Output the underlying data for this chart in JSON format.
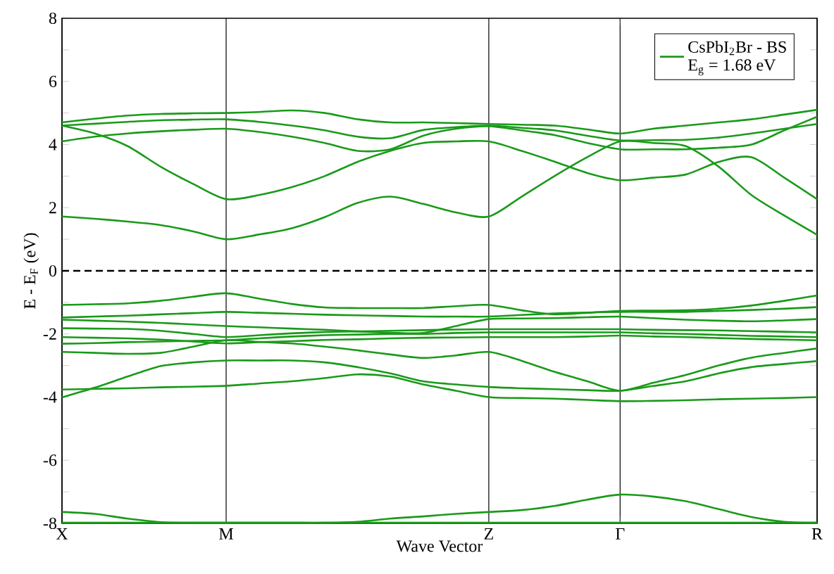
{
  "chart_data": {
    "type": "line",
    "xlabel": "Wave Vector",
    "ylabel": "E - E$_{F}$ (eV)",
    "annotations": [
      "E$_{g}$ = 1.68 eV"
    ],
    "ylim": [
      -8,
      8
    ],
    "yticks": [
      -8,
      {
        "value": -7,
        "label": null
      },
      -6,
      {
        "value": -5,
        "label": null
      },
      -4,
      {
        "value": -3,
        "label": null
      },
      -2,
      {
        "value": -1,
        "label": null
      },
      0,
      {
        "value": 1,
        "label": null
      },
      2,
      {
        "value": 3,
        "label": null
      },
      4,
      {
        "value": 5,
        "label": null
      },
      6,
      {
        "value": 7,
        "label": null
      },
      8
    ],
    "categories": [
      "X",
      null,
      null,
      null,
      null,
      "M",
      null,
      null,
      null,
      null,
      null,
      null,
      null,
      "Z",
      null,
      null,
      null,
      "Γ",
      null,
      null,
      null,
      null,
      null,
      "R"
    ],
    "legend": "top right",
    "marker": "none",
    "grid": "x",
    "ref_lines": [
      {
        "axis": "y",
        "value": 0,
        "color": "#000000",
        "line_style": "dashed"
      }
    ],
    "series": [
      {
        "name": "CsPbI$_{2}$Br  - BS",
        "color": "#1a9a1a",
        "values": [
          1.72,
          1.65,
          1.56,
          1.45,
          1.25,
          1.0,
          1.15,
          1.35,
          1.7,
          2.15,
          2.35,
          2.12,
          1.85,
          1.72,
          2.35,
          3.0,
          3.6,
          4.1,
          4.05,
          3.95,
          3.3,
          2.4,
          1.75,
          1.14
        ]
      },
      {
        "color": "#1a9a1a",
        "values": [
          4.6,
          4.35,
          3.95,
          3.3,
          2.75,
          2.27,
          2.4,
          2.65,
          3.0,
          3.45,
          3.8,
          4.05,
          4.1,
          4.1,
          3.8,
          3.46,
          3.1,
          2.87,
          2.95,
          3.05,
          3.45,
          3.6,
          2.95,
          2.27
        ]
      },
      {
        "color": "#1a9a1a",
        "values": [
          4.1,
          4.25,
          4.35,
          4.42,
          4.47,
          4.5,
          4.4,
          4.25,
          4.05,
          3.8,
          3.85,
          4.28,
          4.5,
          4.58,
          4.45,
          4.3,
          4.05,
          3.85,
          3.85,
          3.85,
          3.9,
          4.0,
          4.45,
          4.88
        ]
      },
      {
        "color": "#1a9a1a",
        "values": [
          4.6,
          4.66,
          4.72,
          4.77,
          4.79,
          4.8,
          4.72,
          4.6,
          4.45,
          4.25,
          4.2,
          4.46,
          4.55,
          4.6,
          4.53,
          4.45,
          4.28,
          4.13,
          4.14,
          4.15,
          4.22,
          4.35,
          4.5,
          4.65
        ]
      },
      {
        "color": "#1a9a1a",
        "values": [
          4.7,
          4.82,
          4.92,
          4.97,
          4.99,
          5.0,
          5.03,
          5.08,
          5.0,
          4.8,
          4.7,
          4.7,
          4.68,
          4.65,
          4.63,
          4.6,
          4.48,
          4.35,
          4.5,
          4.6,
          4.7,
          4.8,
          4.95,
          5.1
        ]
      },
      {
        "color": "#1a9a1a",
        "values": [
          -1.08,
          -1.06,
          -1.03,
          -0.95,
          -0.82,
          -0.71,
          -0.88,
          -1.05,
          -1.16,
          -1.18,
          -1.18,
          -1.18,
          -1.12,
          -1.08,
          -1.25,
          -1.38,
          -1.33,
          -1.27,
          -1.26,
          -1.25,
          -1.2,
          -1.1,
          -0.95,
          -0.78
        ]
      },
      {
        "color": "#1a9a1a",
        "values": [
          -1.48,
          -1.45,
          -1.42,
          -1.38,
          -1.34,
          -1.3,
          -1.33,
          -1.36,
          -1.39,
          -1.41,
          -1.43,
          -1.45,
          -1.45,
          -1.45,
          -1.4,
          -1.35,
          -1.32,
          -1.3,
          -1.3,
          -1.3,
          -1.27,
          -1.24,
          -1.2,
          -1.15
        ]
      },
      {
        "color": "#1a9a1a",
        "values": [
          -1.55,
          -1.58,
          -1.61,
          -1.65,
          -1.7,
          -1.75,
          -1.79,
          -1.83,
          -1.87,
          -1.92,
          -1.96,
          -1.97,
          -1.75,
          -1.53,
          -1.51,
          -1.5,
          -1.47,
          -1.45,
          -1.5,
          -1.55,
          -1.58,
          -1.6,
          -1.57,
          -1.53
        ]
      },
      {
        "color": "#1a9a1a",
        "values": [
          -1.82,
          -1.83,
          -1.84,
          -1.9,
          -2.0,
          -2.1,
          -2.04,
          -1.98,
          -1.94,
          -1.92,
          -1.9,
          -1.88,
          -1.86,
          -1.85,
          -1.85,
          -1.85,
          -1.85,
          -1.85,
          -1.87,
          -1.88,
          -1.89,
          -1.91,
          -1.93,
          -1.95
        ]
      },
      {
        "color": "#1a9a1a",
        "values": [
          -2.31,
          -2.29,
          -2.26,
          -2.24,
          -2.22,
          -2.2,
          -2.14,
          -2.08,
          -2.04,
          -2.02,
          -2.0,
          -2.0,
          -1.97,
          -1.95,
          -1.95,
          -1.95,
          -1.95,
          -1.95,
          -1.98,
          -2.0,
          -2.03,
          -2.06,
          -2.08,
          -2.1
        ]
      },
      {
        "color": "#1a9a1a",
        "values": [
          -2.1,
          -2.12,
          -2.14,
          -2.18,
          -2.24,
          -2.3,
          -2.26,
          -2.23,
          -2.19,
          -2.17,
          -2.14,
          -2.12,
          -2.11,
          -2.1,
          -2.1,
          -2.1,
          -2.08,
          -2.05,
          -2.08,
          -2.1,
          -2.13,
          -2.16,
          -2.18,
          -2.2
        ]
      },
      {
        "color": "#1a9a1a",
        "values": [
          -2.57,
          -2.6,
          -2.63,
          -2.6,
          -2.4,
          -2.2,
          -2.25,
          -2.3,
          -2.4,
          -2.52,
          -2.65,
          -2.76,
          -2.68,
          -2.57,
          -2.85,
          -3.2,
          -3.5,
          -3.8,
          -3.55,
          -3.3,
          -3.0,
          -2.75,
          -2.6,
          -2.46
        ]
      },
      {
        "color": "#1a9a1a",
        "values": [
          -4.01,
          -3.7,
          -3.35,
          -3.02,
          -2.9,
          -2.84,
          -2.84,
          -2.84,
          -2.9,
          -3.05,
          -3.25,
          -3.5,
          -3.6,
          -3.68,
          -3.72,
          -3.75,
          -3.78,
          -3.8,
          -3.65,
          -3.5,
          -3.25,
          -3.05,
          -2.95,
          -2.86
        ]
      },
      {
        "color": "#1a9a1a",
        "values": [
          -3.76,
          -3.74,
          -3.72,
          -3.69,
          -3.67,
          -3.64,
          -3.57,
          -3.5,
          -3.4,
          -3.28,
          -3.35,
          -3.6,
          -3.8,
          -4.0,
          -4.03,
          -4.05,
          -4.09,
          -4.13,
          -4.12,
          -4.1,
          -4.07,
          -4.05,
          -4.03,
          -4.0
        ]
      },
      {
        "color": "#1a9a1a",
        "values": [
          -7.64,
          -7.7,
          -7.85,
          -7.96,
          -7.98,
          -7.98,
          -7.98,
          -7.98,
          -7.98,
          -7.95,
          -7.85,
          -7.78,
          -7.7,
          -7.64,
          -7.58,
          -7.45,
          -7.25,
          -7.09,
          -7.15,
          -7.3,
          -7.55,
          -7.8,
          -7.95,
          -7.98
        ]
      },
      {
        "color": "#1a9a1a",
        "values": [
          -7.98,
          -7.98,
          -7.98,
          -7.98,
          -7.98,
          -7.98,
          -7.98,
          -7.98,
          -7.98,
          -7.98,
          -7.98,
          -7.98,
          -7.98,
          -7.98,
          -7.98,
          -7.98,
          -7.98,
          -7.98,
          -7.98,
          -7.98,
          -7.98,
          -7.98,
          -7.98,
          -7.98
        ]
      }
    ]
  }
}
